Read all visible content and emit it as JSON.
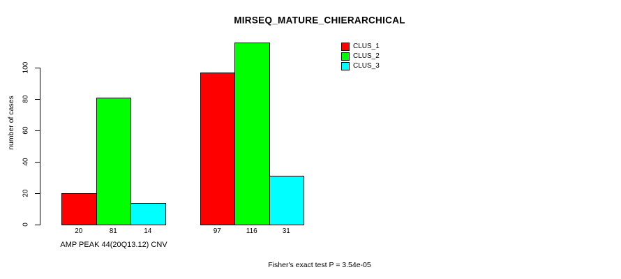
{
  "chart_data": {
    "type": "bar",
    "title": "MIRSEQ_MATURE_CHIERARCHICAL",
    "ylabel": "number of cases",
    "xlabel": "AMP PEAK 44(20Q13.12) CNV",
    "footnote": "Fisher's exact test P = 3.54e-05",
    "categories": [
      "AMP PEAK 44(20Q13.12) CNV",
      ""
    ],
    "series": [
      {
        "name": "CLUS_1",
        "color": "#ff0000",
        "values": [
          20,
          97
        ]
      },
      {
        "name": "CLUS_2",
        "color": "#00ff00",
        "values": [
          81,
          116
        ]
      },
      {
        "name": "CLUS_3",
        "color": "#00ffff",
        "values": [
          14,
          31
        ]
      }
    ],
    "yticks": [
      0,
      20,
      40,
      60,
      80,
      100
    ],
    "ylim": [
      0,
      100
    ],
    "grid": false,
    "legend_position": "top-right",
    "axis_color": "#000000",
    "background": "#ffffff"
  }
}
